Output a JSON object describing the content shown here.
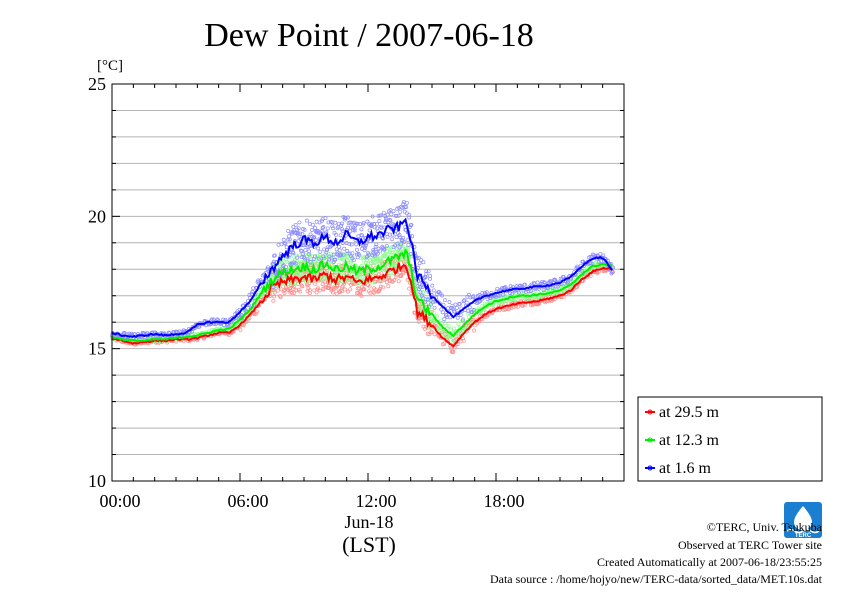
{
  "chart_data": {
    "type": "line",
    "title": "Dew Point / 2007-06-18",
    "ylabel": "[°C]",
    "xlabel_date": "Jun-18",
    "xlabel_tz": "(LST)",
    "ylim": [
      10,
      25
    ],
    "xlim": [
      0,
      24
    ],
    "y_ticks": [
      10,
      15,
      20,
      25
    ],
    "y_minor_step": 1,
    "x_ticks": [
      {
        "value": 0,
        "label": "00:00"
      },
      {
        "value": 6,
        "label": "06:00"
      },
      {
        "value": 12,
        "label": "12:00"
      },
      {
        "value": 18,
        "label": "18:00"
      }
    ],
    "grid": true,
    "legend_position": "right-bottom-outside",
    "series": [
      {
        "name": "at 29.5 m",
        "color": "#ff0000",
        "scatter_color": "#ff8c8c",
        "x": [
          0,
          0.5,
          1,
          1.5,
          2,
          2.5,
          3,
          3.5,
          4,
          4.5,
          5,
          5.5,
          6,
          6.5,
          7,
          7.5,
          8,
          8.5,
          9,
          9.5,
          10,
          10.5,
          11,
          11.5,
          12,
          12.5,
          13,
          13.5,
          13.8,
          14,
          14.3,
          14.6,
          15,
          15.5,
          16,
          16.5,
          17,
          17.5,
          18,
          18.5,
          19,
          19.5,
          20,
          20.5,
          21,
          21.5,
          22,
          22.5,
          23,
          23.5
        ],
        "y": [
          15.4,
          15.3,
          15.2,
          15.25,
          15.3,
          15.3,
          15.35,
          15.35,
          15.4,
          15.5,
          15.6,
          15.6,
          15.9,
          16.3,
          16.8,
          17.3,
          17.5,
          17.6,
          17.7,
          17.6,
          17.8,
          17.6,
          17.7,
          17.5,
          17.6,
          17.7,
          17.9,
          18.1,
          18.2,
          17.6,
          16.4,
          16.2,
          15.9,
          15.4,
          15.1,
          15.6,
          16.0,
          16.3,
          16.5,
          16.6,
          16.7,
          16.75,
          16.8,
          16.9,
          17.0,
          17.2,
          17.6,
          17.9,
          18.05,
          18.0
        ]
      },
      {
        "name": "at 12.3 m",
        "color": "#00ee00",
        "scatter_color": "#8cff8c",
        "x": [
          0,
          0.5,
          1,
          1.5,
          2,
          2.5,
          3,
          3.5,
          4,
          4.5,
          5,
          5.5,
          6,
          6.5,
          7,
          7.5,
          8,
          8.5,
          9,
          9.5,
          10,
          10.5,
          11,
          11.5,
          12,
          12.5,
          13,
          13.5,
          13.8,
          14,
          14.3,
          14.6,
          15,
          15.5,
          16,
          16.5,
          17,
          17.5,
          18,
          18.5,
          19,
          19.5,
          20,
          20.5,
          21,
          21.5,
          22,
          22.5,
          23,
          23.5
        ],
        "y": [
          15.45,
          15.35,
          15.3,
          15.3,
          15.35,
          15.35,
          15.4,
          15.45,
          15.5,
          15.6,
          15.7,
          15.75,
          16.1,
          16.5,
          17.1,
          17.6,
          17.9,
          18.0,
          18.1,
          18.0,
          18.2,
          18.0,
          18.1,
          17.9,
          18.0,
          18.1,
          18.3,
          18.5,
          18.6,
          18.0,
          16.9,
          16.6,
          16.3,
          15.8,
          15.5,
          15.9,
          16.3,
          16.6,
          16.8,
          16.9,
          17.0,
          17.0,
          17.05,
          17.1,
          17.2,
          17.4,
          17.8,
          18.1,
          18.2,
          18.1
        ]
      },
      {
        "name": "at 1.6 m",
        "color": "#0000ff",
        "scatter_color": "#8c8cff",
        "x": [
          0,
          0.5,
          1,
          1.5,
          2,
          2.5,
          3,
          3.5,
          4,
          4.5,
          5,
          5.5,
          6,
          6.5,
          7,
          7.5,
          8,
          8.5,
          9,
          9.5,
          10,
          10.5,
          11,
          11.5,
          12,
          12.5,
          13,
          13.5,
          13.8,
          14,
          14.3,
          14.6,
          15,
          15.5,
          16,
          16.5,
          17,
          17.5,
          18,
          18.5,
          19,
          19.5,
          20,
          20.5,
          21,
          21.5,
          22,
          22.5,
          23,
          23.5
        ],
        "y": [
          15.6,
          15.5,
          15.45,
          15.5,
          15.55,
          15.5,
          15.55,
          15.6,
          15.9,
          16.0,
          16.0,
          16.0,
          16.4,
          16.8,
          17.5,
          18.0,
          18.5,
          18.9,
          19.1,
          19.0,
          19.2,
          19.0,
          19.3,
          19.0,
          19.2,
          19.3,
          19.5,
          19.6,
          19.9,
          19.1,
          17.8,
          17.5,
          17.0,
          16.6,
          16.2,
          16.5,
          16.8,
          17.0,
          17.1,
          17.2,
          17.25,
          17.3,
          17.35,
          17.4,
          17.5,
          17.7,
          18.1,
          18.4,
          18.45,
          17.9
        ]
      }
    ]
  },
  "footer": {
    "copyright": "©TERC, Univ. Tsukuba",
    "observed": "Observed at TERC Tower site",
    "created": "Created Automatically at 2007-06-18/23:55:25",
    "source": "Data source : /home/hojyo/new/TERC-data/sorted_data/MET.10s.dat"
  },
  "logo": {
    "text": "TERC",
    "color": "#1a7fd0"
  }
}
